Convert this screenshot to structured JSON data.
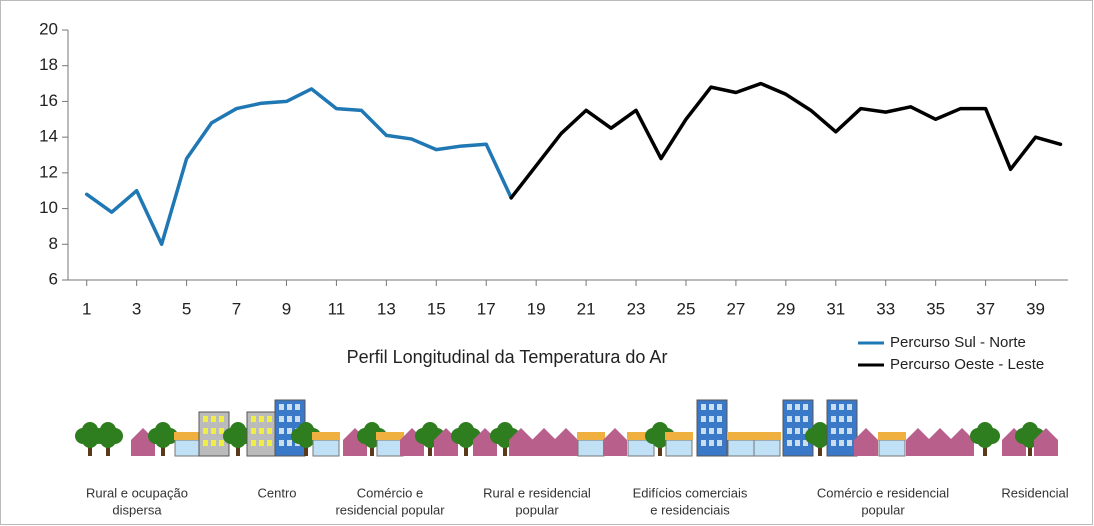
{
  "chart_data": {
    "type": "line",
    "title": "Perfil Longitudinal da Temperatura do Ar",
    "x": [
      1,
      2,
      3,
      4,
      5,
      6,
      7,
      8,
      9,
      10,
      11,
      12,
      13,
      14,
      15,
      16,
      17,
      18,
      19,
      20,
      21,
      22,
      23,
      24,
      25,
      26,
      27,
      28,
      29,
      30,
      31,
      32,
      33,
      34,
      35,
      36,
      37,
      38,
      39,
      40
    ],
    "series": [
      {
        "name": "Percurso Sul - Norte",
        "color": "#1f77b4",
        "values": [
          10.8,
          9.8,
          11.0,
          8.0,
          12.8,
          14.8,
          15.6,
          15.9,
          16.0,
          16.7,
          15.6,
          15.5,
          14.1,
          13.9,
          13.3,
          13.5,
          13.6,
          10.6,
          null,
          null,
          null,
          null,
          null,
          null,
          null,
          null,
          null,
          null,
          null,
          null,
          null,
          null,
          null,
          null,
          null,
          null,
          null,
          null,
          null,
          null
        ]
      },
      {
        "name": "Percurso Oeste - Leste",
        "color": "#000000",
        "values": [
          null,
          null,
          null,
          null,
          null,
          null,
          null,
          null,
          null,
          null,
          null,
          null,
          null,
          null,
          null,
          null,
          null,
          10.6,
          12.4,
          14.2,
          15.5,
          14.5,
          15.5,
          12.8,
          15.0,
          16.8,
          16.5,
          17.0,
          16.4,
          15.5,
          14.3,
          15.6,
          15.4,
          15.7,
          15.0,
          15.6,
          15.6,
          12.2,
          14.0,
          13.6
        ]
      }
    ],
    "xlim": [
      0.25,
      40.3
    ],
    "xticks": [
      1,
      3,
      5,
      7,
      9,
      11,
      13,
      15,
      17,
      19,
      21,
      23,
      25,
      27,
      29,
      31,
      33,
      35,
      37,
      39
    ],
    "ylim": [
      6,
      20
    ],
    "yticks": [
      6,
      8,
      10,
      12,
      14,
      16,
      18,
      20
    ],
    "legend": "right",
    "zones": [
      [
        "Rural e ocupação",
        "dispersa"
      ],
      [
        "Centro"
      ],
      [
        "Comércio e",
        "residencial popular"
      ],
      [
        "Rural e residencial",
        "popular"
      ],
      [
        "Edifícios comerciais",
        "e residenciais"
      ],
      [
        "Comércio e residencial",
        "popular"
      ],
      [
        "Residencial"
      ]
    ]
  }
}
